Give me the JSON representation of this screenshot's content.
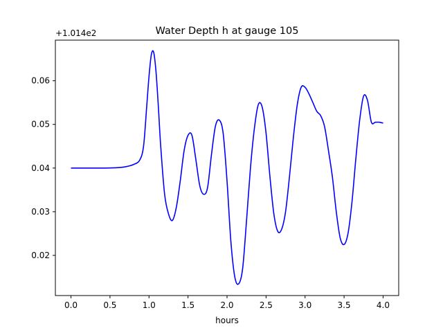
{
  "chart_data": {
    "type": "line",
    "title": "Water Depth h at gauge 105",
    "xlabel": "hours",
    "ylabel": "",
    "y_offset_label": "+1.014e2",
    "xlim": [
      -0.2,
      4.2
    ],
    "ylim": [
      0.0108,
      0.0693
    ],
    "x_ticks": [
      0.0,
      0.5,
      1.0,
      1.5,
      2.0,
      2.5,
      3.0,
      3.5,
      4.0
    ],
    "x_tick_labels": [
      "0.0",
      "0.5",
      "1.0",
      "1.5",
      "2.0",
      "2.5",
      "3.0",
      "3.5",
      "4.0"
    ],
    "y_ticks": [
      0.02,
      0.03,
      0.04,
      0.05,
      0.06
    ],
    "y_tick_labels": [
      "0.02",
      "0.03",
      "0.04",
      "0.05",
      "0.06"
    ],
    "grid": false,
    "line_color": "#0000ff",
    "series": [
      {
        "name": "",
        "x": [
          0.0,
          0.2,
          0.4,
          0.6,
          0.7,
          0.8,
          0.88,
          0.93,
          0.97,
          1.0,
          1.03,
          1.06,
          1.09,
          1.12,
          1.15,
          1.2,
          1.25,
          1.3,
          1.35,
          1.4,
          1.45,
          1.5,
          1.55,
          1.6,
          1.65,
          1.7,
          1.75,
          1.8,
          1.85,
          1.9,
          1.95,
          2.0,
          2.05,
          2.1,
          2.15,
          2.2,
          2.25,
          2.3,
          2.35,
          2.4,
          2.45,
          2.5,
          2.55,
          2.6,
          2.65,
          2.7,
          2.75,
          2.8,
          2.85,
          2.9,
          2.95,
          3.0,
          3.05,
          3.1,
          3.15,
          3.2,
          3.25,
          3.3,
          3.35,
          3.4,
          3.45,
          3.5,
          3.55,
          3.6,
          3.65,
          3.7,
          3.75,
          3.8,
          3.85,
          3.9,
          3.95,
          4.0
        ],
        "y": [
          0.04,
          0.04,
          0.04,
          0.0401,
          0.0403,
          0.0408,
          0.0418,
          0.045,
          0.054,
          0.061,
          0.066,
          0.0665,
          0.062,
          0.054,
          0.045,
          0.034,
          0.0295,
          0.028,
          0.031,
          0.037,
          0.044,
          0.0475,
          0.0475,
          0.042,
          0.036,
          0.034,
          0.0355,
          0.043,
          0.0495,
          0.051,
          0.048,
          0.037,
          0.023,
          0.015,
          0.0135,
          0.017,
          0.028,
          0.04,
          0.049,
          0.0545,
          0.054,
          0.048,
          0.038,
          0.0295,
          0.0255,
          0.026,
          0.03,
          0.038,
          0.047,
          0.0545,
          0.0585,
          0.0585,
          0.057,
          0.055,
          0.053,
          0.052,
          0.0495,
          0.044,
          0.038,
          0.03,
          0.024,
          0.0225,
          0.025,
          0.032,
          0.042,
          0.051,
          0.0565,
          0.0555,
          0.0505,
          0.0505,
          0.0505,
          0.0503
        ]
      }
    ]
  }
}
